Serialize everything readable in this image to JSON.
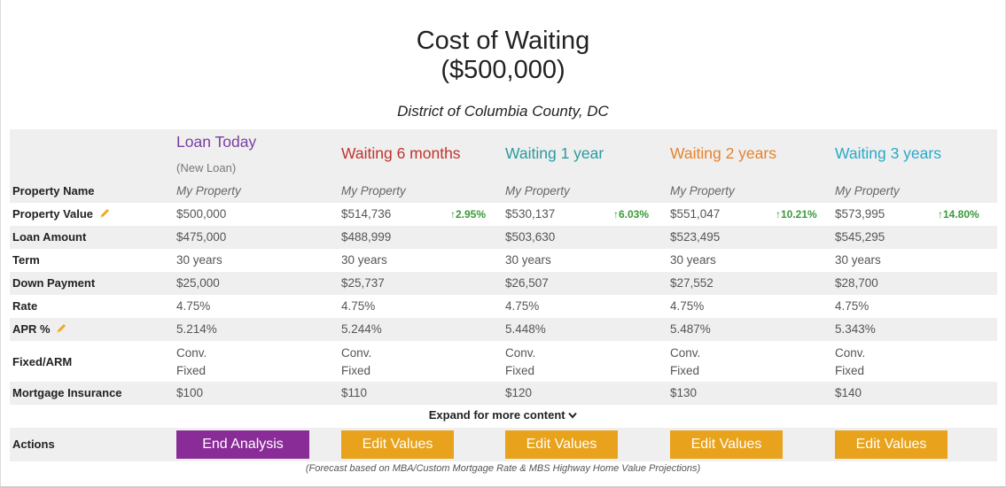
{
  "title_line1": "Cost of Waiting",
  "title_line2": "($500,000)",
  "county": "District of Columbia County, DC",
  "colors": {
    "loan_today": "#7a3fa0",
    "waiting_6": "#c0332b",
    "waiting_1": "#2a9a9f",
    "waiting_2": "#e8822a",
    "waiting_3": "#2aa8c8",
    "increase": "#3a9a3a",
    "end_button": "#8a2c98",
    "edit_button": "#e8a21b"
  },
  "columns": [
    {
      "header": "Loan Today",
      "subheader": "(New Loan)"
    },
    {
      "header": "Waiting 6 months"
    },
    {
      "header": "Waiting 1 year"
    },
    {
      "header": "Waiting 2 years"
    },
    {
      "header": "Waiting 3 years"
    }
  ],
  "row_labels": {
    "property_name": "Property Name",
    "property_value": "Property Value",
    "loan_amount": "Loan Amount",
    "term": "Term",
    "down_payment": "Down Payment",
    "rate": "Rate",
    "apr": "APR %",
    "fixed_arm": "Fixed/ARM",
    "mortgage_insurance": "Mortgage Insurance",
    "actions": "Actions"
  },
  "rows": {
    "property_name": [
      "My Property",
      "My Property",
      "My Property",
      "My Property",
      "My Property"
    ],
    "property_value": [
      "$500,000",
      "$514,736",
      "$530,137",
      "$551,047",
      "$573,995"
    ],
    "value_change": [
      "",
      "↑2.95%",
      "↑6.03%",
      "↑10.21%",
      "↑14.80%"
    ],
    "loan_amount": [
      "$475,000",
      "$488,999",
      "$503,630",
      "$523,495",
      "$545,295"
    ],
    "term": [
      "30 years",
      "30 years",
      "30 years",
      "30 years",
      "30 years"
    ],
    "down_payment": [
      "$25,000",
      "$25,737",
      "$26,507",
      "$27,552",
      "$28,700"
    ],
    "rate": [
      "4.75%",
      "4.75%",
      "4.75%",
      "4.75%",
      "4.75%"
    ],
    "apr": [
      "5.214%",
      "5.244%",
      "5.448%",
      "5.487%",
      "5.343%"
    ],
    "loan_type": [
      "Conv.",
      "Conv.",
      "Conv.",
      "Conv.",
      "Conv."
    ],
    "rate_type": [
      "Fixed",
      "Fixed",
      "Fixed",
      "Fixed",
      "Fixed"
    ],
    "mortgage_insurance": [
      "$100",
      "$110",
      "$120",
      "$130",
      "$140"
    ]
  },
  "expand_label": "Expand for more content",
  "buttons": {
    "end": "End Analysis",
    "edit": "Edit Values"
  },
  "footnote": "(Forecast based on MBA/Custom Mortgage Rate & MBS Highway Home Value Projections)"
}
